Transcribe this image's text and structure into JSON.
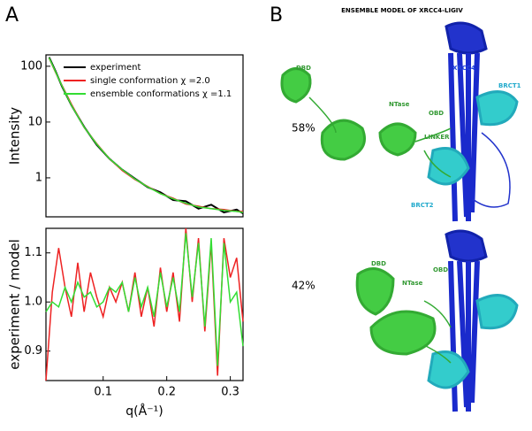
{
  "figure": {
    "panel_a": "A",
    "panel_b": "B"
  },
  "chart_data": [
    {
      "type": "line",
      "log_y": true,
      "ylabel": "Intensity",
      "x": [
        0.015,
        0.025,
        0.035,
        0.05,
        0.07,
        0.09,
        0.11,
        0.13,
        0.15,
        0.17,
        0.19,
        0.21,
        0.23,
        0.25,
        0.27,
        0.29,
        0.31,
        0.32
      ],
      "xlim": [
        0.01,
        0.32
      ],
      "ylim": [
        0.2,
        160
      ],
      "yticks": [
        1,
        10,
        100
      ],
      "legend": "top-right",
      "series": [
        {
          "name": "experiment",
          "color": "#000000",
          "values": [
            145,
            82,
            44,
            20,
            8.2,
            3.9,
            2.2,
            1.4,
            0.97,
            0.68,
            0.55,
            0.4,
            0.38,
            0.28,
            0.33,
            0.24,
            0.27,
            0.23
          ]
        },
        {
          "name": "single conformation  χ =2.0",
          "color": "#ee2222",
          "values": [
            140,
            78,
            46,
            21,
            8,
            4.1,
            2.2,
            1.35,
            0.93,
            0.7,
            0.52,
            0.43,
            0.34,
            0.31,
            0.28,
            0.27,
            0.25,
            0.25
          ]
        },
        {
          "name": "ensemble conformations  χ =1.1",
          "color": "#33dd33",
          "values": [
            142,
            80,
            45,
            20,
            8.1,
            4,
            2.2,
            1.4,
            0.95,
            0.69,
            0.52,
            0.42,
            0.35,
            0.3,
            0.28,
            0.26,
            0.25,
            0.24
          ]
        }
      ]
    },
    {
      "type": "line",
      "xlabel": "q(Å⁻¹)",
      "ylabel": "experiment / model",
      "x": [
        0.01,
        0.02,
        0.03,
        0.04,
        0.05,
        0.06,
        0.07,
        0.08,
        0.09,
        0.1,
        0.11,
        0.12,
        0.13,
        0.14,
        0.15,
        0.16,
        0.17,
        0.18,
        0.19,
        0.2,
        0.21,
        0.22,
        0.23,
        0.24,
        0.25,
        0.26,
        0.27,
        0.28,
        0.29,
        0.3,
        0.31,
        0.32
      ],
      "xlim": [
        0.01,
        0.32
      ],
      "ylim": [
        0.84,
        1.15
      ],
      "xticks": [
        0.1,
        0.2,
        0.3
      ],
      "yticks": [
        0.9,
        {
          "value": 1,
          "label": "1.0"
        },
        1.1
      ],
      "series": [
        {
          "color": "#ee2222",
          "values": [
            0.84,
            1.02,
            1.11,
            1.03,
            0.97,
            1.08,
            0.98,
            1.06,
            1.01,
            0.97,
            1.03,
            1.0,
            1.04,
            0.98,
            1.06,
            0.97,
            1.03,
            0.95,
            1.07,
            0.98,
            1.06,
            0.96,
            1.15,
            1.0,
            1.13,
            0.94,
            1.12,
            0.85,
            1.13,
            1.05,
            1.09,
            0.96
          ]
        },
        {
          "color": "#33dd33",
          "values": [
            0.98,
            1.0,
            0.99,
            1.03,
            1.0,
            1.04,
            1.01,
            1.02,
            0.99,
            1.0,
            1.03,
            1.02,
            1.04,
            0.98,
            1.05,
            0.99,
            1.03,
            0.97,
            1.06,
            0.99,
            1.05,
            0.98,
            1.14,
            1.01,
            1.12,
            0.95,
            1.13,
            0.87,
            1.12,
            1.0,
            1.02,
            0.91
          ]
        }
      ]
    }
  ],
  "structure": {
    "title": "ENSEMBLE MODEL OF XRCC4-LIGIV",
    "model_1": {
      "share": "58%",
      "labels": [
        "DBD",
        "NTase",
        "OBD",
        "LINKER",
        "XRCC4",
        "BRCT1",
        "BRCT2"
      ]
    },
    "model_2": {
      "share": "42%",
      "labels": [
        "DBD",
        "NTase",
        "OBD"
      ]
    }
  }
}
